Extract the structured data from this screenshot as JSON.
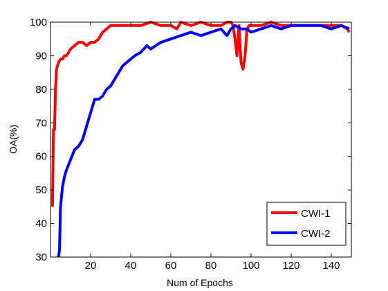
{
  "chart_data": {
    "type": "line",
    "xlabel": "Num of Epochs",
    "ylabel": "OA(%)",
    "xlim": [
      0,
      150
    ],
    "ylim": [
      30,
      100
    ],
    "xticks": [
      20,
      40,
      60,
      80,
      100,
      120,
      140
    ],
    "yticks": [
      30,
      40,
      50,
      60,
      70,
      80,
      90,
      100
    ],
    "grid": false,
    "legend_position": "bottom-right",
    "series": [
      {
        "name": "CWI-1",
        "color": "#ff0000",
        "x": [
          1,
          1.5,
          2,
          2.5,
          3,
          4,
          5,
          6,
          7,
          8,
          9,
          10,
          12,
          14,
          16,
          18,
          20,
          22,
          24,
          26,
          28,
          30,
          32,
          35,
          40,
          45,
          50,
          55,
          60,
          63,
          65,
          70,
          75,
          80,
          85,
          88,
          90,
          91,
          92,
          93,
          94,
          95,
          96,
          97,
          98,
          99,
          100,
          105,
          110,
          115,
          120,
          125,
          130,
          135,
          140,
          145,
          148,
          149
        ],
        "y": [
          45,
          68,
          68,
          80,
          86,
          88,
          89,
          89,
          90,
          90,
          91,
          92,
          93,
          94,
          94,
          93,
          94,
          94,
          95,
          97,
          98,
          99,
          99,
          99,
          99,
          99,
          100,
          99,
          99,
          98,
          100,
          99,
          100,
          99,
          99,
          100,
          100,
          99,
          95,
          90,
          99,
          88,
          86,
          90,
          98,
          99,
          99,
          99,
          100,
          99,
          99,
          99,
          99,
          99,
          99,
          99,
          98,
          97
        ]
      },
      {
        "name": "CWI-2",
        "color": "#0000ff",
        "x": [
          4,
          4.5,
          5,
          6,
          7,
          8,
          10,
          12,
          14,
          16,
          18,
          20,
          22,
          24,
          26,
          28,
          30,
          32,
          34,
          36,
          38,
          40,
          42,
          45,
          48,
          50,
          55,
          60,
          65,
          70,
          75,
          80,
          85,
          88,
          90,
          92,
          95,
          98,
          100,
          105,
          110,
          115,
          120,
          125,
          130,
          135,
          140,
          145,
          149
        ],
        "y": [
          30,
          32,
          45,
          51,
          54,
          56,
          59,
          62,
          63,
          65,
          69,
          73,
          77,
          77,
          78,
          80,
          81,
          83,
          85,
          87,
          88,
          89,
          90,
          91,
          93,
          92,
          94,
          95,
          96,
          97,
          96,
          97,
          98,
          96,
          98,
          99,
          98,
          98,
          97,
          98,
          99,
          98,
          99,
          99,
          99,
          99,
          98,
          99,
          98
        ]
      }
    ]
  }
}
